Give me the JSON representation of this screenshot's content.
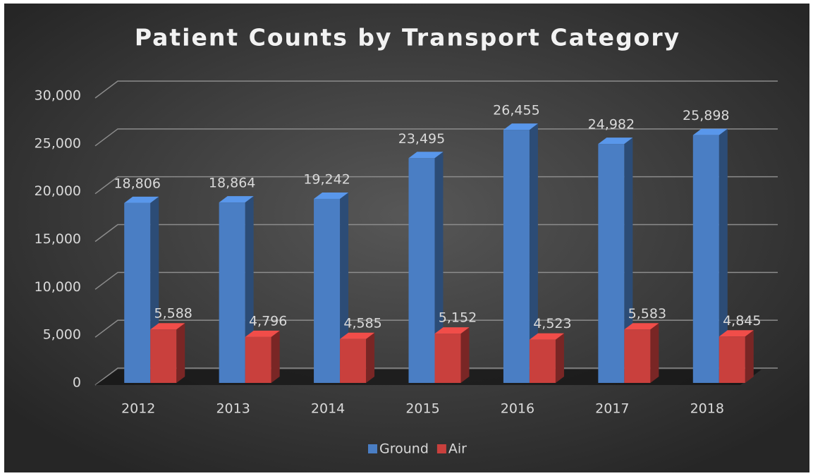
{
  "chart_data": {
    "type": "bar3d",
    "title": "Patient Counts by Transport Category",
    "categories": [
      "2012",
      "2013",
      "2014",
      "2015",
      "2016",
      "2017",
      "2018"
    ],
    "series": [
      {
        "name": "Ground",
        "color": "#4a7ec4",
        "values": [
          18806,
          18864,
          19242,
          23495,
          26455,
          24982,
          25898
        ],
        "value_labels": [
          "18,806",
          "18,864",
          "19,242",
          "23,495",
          "26,455",
          "24,982",
          "25,898"
        ]
      },
      {
        "name": "Air",
        "color": "#c9403d",
        "values": [
          5588,
          4796,
          4585,
          5152,
          4523,
          5583,
          4845
        ],
        "value_labels": [
          "5,588",
          "4,796",
          "4,585",
          "5,152",
          "4,523",
          "5,583",
          "4,845"
        ]
      }
    ],
    "ylim": [
      0,
      30000
    ],
    "yticks": [
      0,
      {
        "value": 5000,
        "label": "5,000"
      },
      {
        "value": 10000,
        "label": "10,000"
      },
      {
        "value": 15000,
        "label": "15,000"
      },
      {
        "value": 20000,
        "label": "20,000"
      },
      {
        "value": 25000,
        "label": "25,000"
      },
      {
        "value": 30000,
        "label": "30,000"
      }
    ],
    "grid": true,
    "legend": "bottom"
  }
}
